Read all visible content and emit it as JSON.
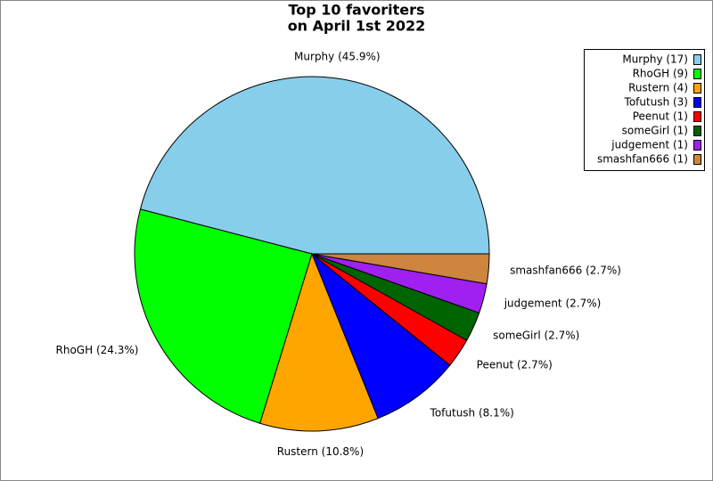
{
  "chart_data": {
    "type": "pie",
    "title": [
      "Top 10 favoriters",
      "on April 1st 2022"
    ],
    "categories": [
      "Murphy (17)",
      "RhoGH (9)",
      "Rustern (4)",
      "Tofutush (3)",
      "Peenut (1)",
      "someGirl (1)",
      "judgement (1)",
      "smashfan666 (1)"
    ],
    "values": [
      45.9,
      24.3,
      10.8,
      8.1,
      2.7,
      2.7,
      2.7,
      2.7
    ],
    "value_labels": [
      "Murphy (45.9%)",
      "RhoGH (24.3%)",
      "Rustern (10.8%)",
      "Tofutush (8.1%)",
      "Peenut (2.7%)",
      "someGirl (2.7%)",
      "judgement (2.7%)",
      "smashfan666 (2.7%)"
    ],
    "colors": [
      "#87ceeb",
      "#00ff00",
      "#ffa500",
      "#0000ff",
      "#ff0000",
      "#006400",
      "#a020f0",
      "#cd853f"
    ],
    "legend": "upper right"
  }
}
